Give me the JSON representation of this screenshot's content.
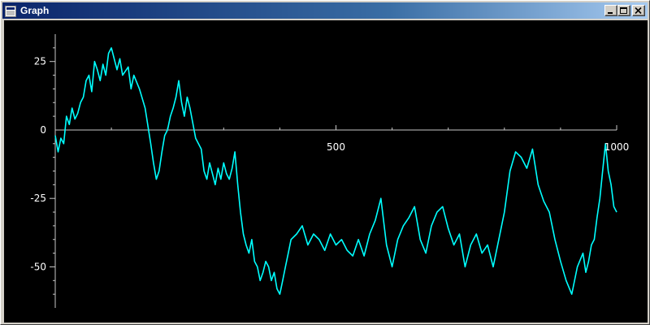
{
  "window": {
    "title": "Graph",
    "icons": {
      "app": "window-app-icon",
      "minimize": "minimize-icon",
      "maximize": "maximize-icon",
      "close": "close-icon"
    }
  },
  "colors": {
    "background": "#000000",
    "axis": "#c8c8c8",
    "tick_text": "#ffffff",
    "series": "#00ffff",
    "titlebar_start": "#0a246a",
    "titlebar_end": "#a6caf0"
  },
  "chart_data": {
    "type": "line",
    "xlim": [
      0,
      1000
    ],
    "ylim": [
      -65,
      35
    ],
    "x_ticks": [
      500,
      1000
    ],
    "x_tick_labels": [
      "500",
      "1000"
    ],
    "y_ticks": [
      25,
      0,
      -25,
      -50
    ],
    "y_tick_labels": [
      "25",
      "0",
      "-25",
      "-50"
    ],
    "grid": false,
    "legend": "none",
    "series": [
      {
        "x": [
          0,
          5,
          10,
          15,
          20,
          25,
          30,
          35,
          40,
          45,
          50,
          55,
          60,
          65,
          70,
          75,
          80,
          85,
          90,
          95,
          100,
          110,
          115,
          120,
          130,
          135,
          140,
          150,
          160,
          170,
          175,
          180,
          185,
          190,
          195,
          200,
          205,
          210,
          215,
          220,
          225,
          230,
          235,
          240,
          250,
          260,
          265,
          270,
          275,
          280,
          285,
          290,
          295,
          300,
          305,
          310,
          315,
          320,
          325,
          330,
          335,
          340,
          345,
          350,
          355,
          360,
          365,
          370,
          375,
          380,
          385,
          390,
          395,
          400,
          405,
          410,
          415,
          420,
          430,
          440,
          450,
          460,
          470,
          480,
          490,
          500,
          510,
          520,
          530,
          540,
          550,
          560,
          570,
          580,
          590,
          600,
          610,
          620,
          630,
          640,
          650,
          660,
          670,
          680,
          690,
          700,
          710,
          720,
          730,
          740,
          750,
          760,
          770,
          780,
          790,
          800,
          810,
          820,
          830,
          840,
          850,
          860,
          870,
          880,
          890,
          900,
          910,
          920,
          930,
          940,
          945,
          950,
          955,
          960,
          965,
          970,
          975,
          980,
          985,
          990,
          995,
          1000
        ],
        "y": [
          -2,
          -8,
          -3,
          -5,
          5,
          2,
          8,
          4,
          6,
          10,
          12,
          18,
          20,
          14,
          25,
          22,
          18,
          24,
          20,
          28,
          30,
          22,
          26,
          20,
          23,
          15,
          20,
          15,
          8,
          -5,
          -12,
          -18,
          -15,
          -8,
          -2,
          0,
          5,
          8,
          12,
          18,
          10,
          5,
          12,
          8,
          -3,
          -7,
          -15,
          -18,
          -12,
          -16,
          -20,
          -14,
          -18,
          -12,
          -16,
          -18,
          -14,
          -8,
          -20,
          -30,
          -38,
          -42,
          -45,
          -40,
          -48,
          -50,
          -55,
          -52,
          -48,
          -50,
          -55,
          -52,
          -58,
          -60,
          -55,
          -50,
          -45,
          -40,
          -38,
          -35,
          -42,
          -38,
          -40,
          -44,
          -38,
          -42,
          -40,
          -44,
          -46,
          -40,
          -46,
          -38,
          -33,
          -25,
          -42,
          -50,
          -40,
          -35,
          -32,
          -28,
          -40,
          -45,
          -35,
          -30,
          -28,
          -36,
          -42,
          -38,
          -50,
          -42,
          -38,
          -45,
          -42,
          -50,
          -40,
          -30,
          -15,
          -8,
          -10,
          -14,
          -7,
          -20,
          -26,
          -30,
          -40,
          -48,
          -55,
          -60,
          -50,
          -45,
          -52,
          -48,
          -42,
          -40,
          -32,
          -25,
          -15,
          -5,
          -15,
          -20,
          -28,
          -30
        ]
      }
    ]
  }
}
